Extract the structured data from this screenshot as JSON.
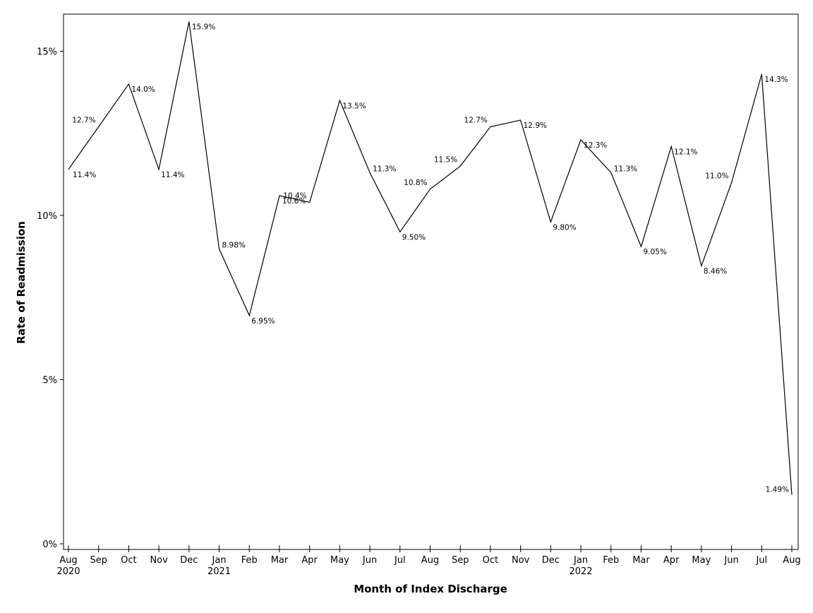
{
  "chart_data": {
    "type": "line",
    "title": "",
    "xlabel": "Month of Index Discharge",
    "ylabel": "Rate of Readmission",
    "ylim": [
      0,
      16.1
    ],
    "yticks": [
      0,
      5,
      10,
      15
    ],
    "ytick_labels": [
      "0%",
      "5%",
      "10%",
      "15%"
    ],
    "grid": false,
    "categories": [
      "Aug",
      "Sep",
      "Oct",
      "Nov",
      "Dec",
      "Jan",
      "Feb",
      "Mar",
      "Apr",
      "May",
      "Jun",
      "Jul",
      "Aug",
      "Sep",
      "Oct",
      "Nov",
      "Dec",
      "Jan",
      "Feb",
      "Mar",
      "Apr",
      "May",
      "Jun",
      "Jul",
      "Aug"
    ],
    "year_labels": [
      {
        "index": 0,
        "label": "2020"
      },
      {
        "index": 5,
        "label": "2021"
      },
      {
        "index": 17,
        "label": "2022"
      }
    ],
    "series": [
      {
        "name": "Rate of Readmission",
        "color": "#000000",
        "values": [
          11.4,
          12.7,
          14.0,
          11.4,
          15.9,
          8.98,
          6.95,
          10.6,
          10.4,
          13.5,
          11.3,
          9.5,
          10.8,
          11.5,
          12.7,
          12.9,
          9.8,
          12.3,
          11.3,
          9.05,
          12.1,
          8.46,
          11.0,
          14.3,
          1.49
        ],
        "labels": [
          "11.4%",
          "12.7%",
          "14.0%",
          "11.4%",
          "15.9%",
          "8.98%",
          "6.95%",
          "10.6%",
          "10.4%",
          "13.5%",
          "11.3%",
          "9.50%",
          "10.8%",
          "11.5%",
          "12.7%",
          "12.9%",
          "9.80%",
          "12.3%",
          "11.3%",
          "9.05%",
          "12.1%",
          "8.46%",
          "11.0%",
          "14.3%",
          "1.49%"
        ]
      }
    ]
  }
}
